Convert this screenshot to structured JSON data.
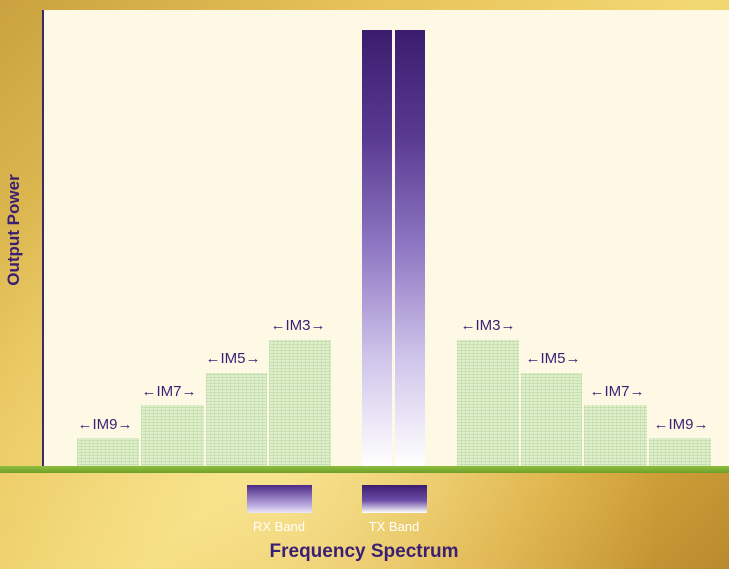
{
  "diagram": {
    "y_axis_label": "Output Power",
    "x_axis_label": "Frequency Spectrum",
    "legend": {
      "rx": "RX Band",
      "tx": "TX Band"
    },
    "im_products_left": [
      {
        "label": "←IM9→",
        "relative_level": 0.07
      },
      {
        "label": "←IM7→",
        "relative_level": 0.15
      },
      {
        "label": "←IM5→",
        "relative_level": 0.23
      },
      {
        "label": "←IM3→",
        "relative_level": 0.31
      }
    ],
    "im_products_right": [
      {
        "label": "←IM3→",
        "relative_level": 0.31
      },
      {
        "label": "←IM5→",
        "relative_level": 0.23
      },
      {
        "label": "←IM7→",
        "relative_level": 0.15
      },
      {
        "label": "←IM9→",
        "relative_level": 0.07
      }
    ],
    "colors": {
      "band": "#3b1c6e",
      "im_bar": "#dfeecb",
      "text": "#3b1f73",
      "baseline": "#8fbf3e"
    }
  }
}
